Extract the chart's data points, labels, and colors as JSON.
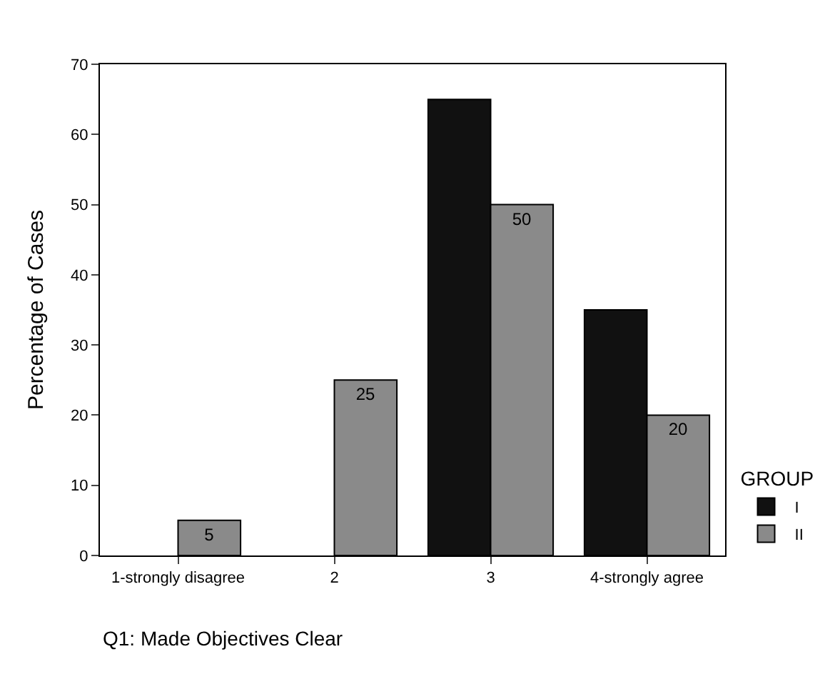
{
  "chart_data": {
    "type": "bar",
    "categories": [
      "1-strongly disagree",
      "2",
      "3",
      "4-strongly agree"
    ],
    "series": [
      {
        "name": "I",
        "color": "#111111",
        "values": [
          null,
          null,
          65,
          35
        ]
      },
      {
        "name": "II",
        "color": "#8a8a8a",
        "values": [
          5,
          25,
          50,
          20
        ],
        "value_labels": [
          "5",
          "25",
          "50",
          "20"
        ]
      }
    ],
    "xlabel": "Q1: Made Objectives Clear",
    "ylabel": "Percentage of Cases",
    "legend_title": "GROUP",
    "ylim": [
      0,
      70
    ],
    "yticks": [
      0,
      10,
      20,
      30,
      40,
      50,
      60,
      70
    ],
    "legend": "bottom right"
  }
}
